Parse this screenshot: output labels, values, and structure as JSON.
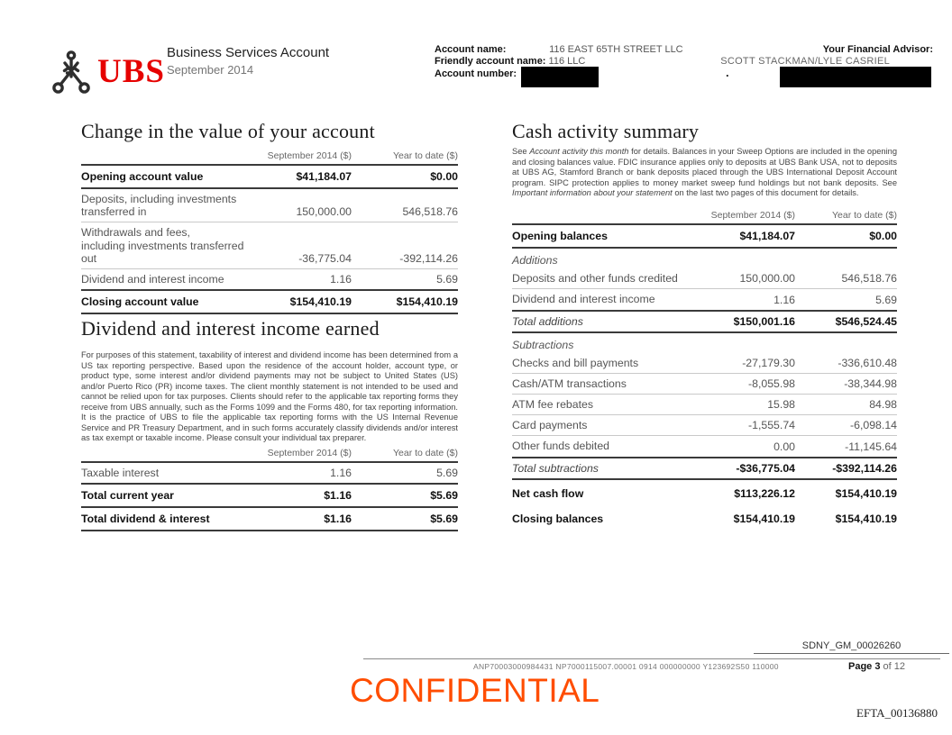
{
  "colors": {
    "ubs_red": "#e60100",
    "confidential_orange": "#ff4d00",
    "redaction_black": "#000000"
  },
  "header": {
    "logo_text": "UBS",
    "product_title": "Business Services Account",
    "period": "September 2014",
    "account_name_label": "Account name:",
    "account_name_value": "116 EAST 65TH STREET LLC",
    "friendly_name_label": "Friendly account name:",
    "friendly_name_value": "116 LLC",
    "account_number_label": "Account number:",
    "advisor_label": "Your Financial Advisor:",
    "advisor_value": "SCOTT STACKMAN/LYLE CASRIEL",
    "stray_dot": "."
  },
  "change_section": {
    "title": "Change in the value of your account",
    "col1": "September 2014 ($)",
    "col2": "Year to date ($)",
    "rows": [
      {
        "label": "Opening account value",
        "v1": "$41,184.07",
        "v2": "$0.00",
        "em": "bold",
        "u": "dark"
      },
      {
        "label": "Deposits, including investments\ntransferred in",
        "v1": "150,000.00",
        "v2": "546,518.76",
        "em": "normal",
        "u": "light"
      },
      {
        "label": "Withdrawals and fees,\nincluding investments transferred\nout",
        "v1": "-36,775.04",
        "v2": "-392,114.26",
        "em": "normal",
        "u": "light"
      },
      {
        "label": "Dividend and interest income",
        "v1": "1.16",
        "v2": "5.69",
        "em": "normal",
        "u": "dark"
      },
      {
        "label": "Closing account value",
        "v1": "$154,410.19",
        "v2": "$154,410.19",
        "em": "bold",
        "u": "dark"
      }
    ]
  },
  "dividend_section": {
    "title": "Dividend and interest income earned",
    "paragraph": "For purposes of this statement, taxability of interest and dividend income has been determined from a US tax reporting perspective. Based upon the residence of the account holder, account type, or product type, some interest and/or dividend payments may not be subject to United States (US) and/or Puerto Rico (PR) income taxes. The client monthly statement is not intended to be used and cannot be relied upon for tax purposes. Clients should refer to the applicable tax reporting forms they receive from UBS annually, such as the Forms 1099 and the Forms 480, for tax reporting information. It is the practice of UBS to file the applicable tax reporting forms with the US Internal Revenue Service and PR Treasury Department, and in such forms accurately classify dividends and/or interest as tax exempt or taxable income. Please consult your individual tax preparer.",
    "col1": "September 2014 ($)",
    "col2": "Year to date ($)",
    "rows": [
      {
        "label": "Taxable interest",
        "v1": "1.16",
        "v2": "5.69",
        "em": "normal",
        "u": "dark"
      },
      {
        "label": "Total current year",
        "v1": "$1.16",
        "v2": "$5.69",
        "em": "bold",
        "u": "dark"
      },
      {
        "label": "Total dividend & interest",
        "v1": "$1.16",
        "v2": "$5.69",
        "em": "bold",
        "u": "dark"
      }
    ]
  },
  "cash_section": {
    "title": "Cash activity summary",
    "intro": {
      "p1": "See ",
      "i1": "Account activity this month",
      "p2": " for details. Balances in your Sweep Options are included in the opening and closing balances value. FDIC insurance applies only to deposits at UBS Bank USA, not to deposits at UBS AG, Stamford Branch or bank deposits placed through the UBS International Deposit Account program.  SIPC protection applies to money market sweep fund holdings but not bank deposits. See ",
      "i2": "Important information about your statement",
      "p3": " on the last two pages of this document for details."
    },
    "col1": "September 2014 ($)",
    "col2": "Year to date ($)",
    "rows": [
      {
        "label": "Opening balances",
        "v1": "$41,184.07",
        "v2": "$0.00",
        "em": "bold",
        "u": "dark"
      },
      {
        "label": "Additions",
        "v1": "",
        "v2": "",
        "em": "section",
        "u": "none"
      },
      {
        "label": "Deposits and other funds credited",
        "v1": "150,000.00",
        "v2": "546,518.76",
        "em": "normal",
        "u": "light"
      },
      {
        "label": "Dividend and interest income",
        "v1": "1.16",
        "v2": "5.69",
        "em": "normal",
        "u": "dark"
      },
      {
        "label": "Total additions",
        "v1": "$150,001.16",
        "v2": "$546,524.45",
        "em": "total",
        "u": "dark"
      },
      {
        "label": "Subtractions",
        "v1": "",
        "v2": "",
        "em": "section",
        "u": "none"
      },
      {
        "label": "Checks and bill payments",
        "v1": "-27,179.30",
        "v2": "-336,610.48",
        "em": "normal",
        "u": "light"
      },
      {
        "label": "Cash/ATM transactions",
        "v1": "-8,055.98",
        "v2": "-38,344.98",
        "em": "normal",
        "u": "light"
      },
      {
        "label": "ATM fee rebates",
        "v1": "15.98",
        "v2": "84.98",
        "em": "normal",
        "u": "light"
      },
      {
        "label": "Card payments",
        "v1": "-1,555.74",
        "v2": "-6,098.14",
        "em": "normal",
        "u": "light"
      },
      {
        "label": "Other funds debited",
        "v1": "0.00",
        "v2": "-11,145.64",
        "em": "normal",
        "u": "dark"
      },
      {
        "label": "Total subtractions",
        "v1": "-$36,775.04",
        "v2": "-$392,114.26",
        "em": "total",
        "u": "dark"
      },
      {
        "label": "Net cash flow",
        "v1": "$113,226.12",
        "v2": "$154,410.19",
        "em": "bold sp",
        "u": "none"
      },
      {
        "label": "Closing balances",
        "v1": "$154,410.19",
        "v2": "$154,410.19",
        "em": "bold sp",
        "u": "none"
      }
    ]
  },
  "footer": {
    "bates_top": "SDNY_GM_00026260",
    "doc_code": "ANP70003000984431 NP7000115007.00001 0914 000000000 Y123692S50 110000",
    "page_label": "Page 3",
    "page_suffix": "of 12",
    "confidential": "CONFIDENTIAL",
    "bates_bottom": "EFTA_00136880"
  }
}
